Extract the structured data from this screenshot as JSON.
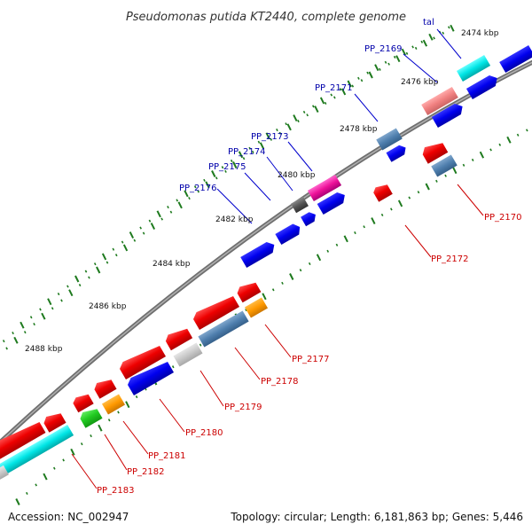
{
  "title": "Pseudomonas putida KT2440, complete genome",
  "footer": {
    "accession": "Accession: NC_002947",
    "summary": "Topology: circular; Length: 6,181,863 bp; Genes: 5,446"
  },
  "colors": {
    "backbone": "#777777",
    "tick_major": "#1e7a1e",
    "label_top": "#0000aa",
    "label_bottom": "#cc0000"
  },
  "ticks": [
    {
      "label": "2474 kbp"
    },
    {
      "label": "2476 kbp"
    },
    {
      "label": "2478 kbp"
    },
    {
      "label": "2480 kbp"
    },
    {
      "label": "2482 kbp"
    },
    {
      "label": "2484 kbp"
    },
    {
      "label": "2486 kbp"
    },
    {
      "label": "2488 kbp"
    }
  ],
  "gene_labels": [
    {
      "text": "tal",
      "side": "top"
    },
    {
      "text": "PP_2169",
      "side": "top"
    },
    {
      "text": "PP_2171",
      "side": "top"
    },
    {
      "text": "PP_2173",
      "side": "top"
    },
    {
      "text": "PP_2174",
      "side": "top"
    },
    {
      "text": "PP_2175",
      "side": "top"
    },
    {
      "text": "PP_2176",
      "side": "top"
    },
    {
      "text": "PP_2170",
      "side": "bottom"
    },
    {
      "text": "PP_2172",
      "side": "bottom"
    },
    {
      "text": "PP_2177",
      "side": "bottom"
    },
    {
      "text": "PP_2178",
      "side": "bottom"
    },
    {
      "text": "PP_2179",
      "side": "bottom"
    },
    {
      "text": "PP_2180",
      "side": "bottom"
    },
    {
      "text": "PP_2181",
      "side": "bottom"
    },
    {
      "text": "PP_2182",
      "side": "bottom"
    },
    {
      "text": "PP_2183",
      "side": "bottom"
    }
  ]
}
